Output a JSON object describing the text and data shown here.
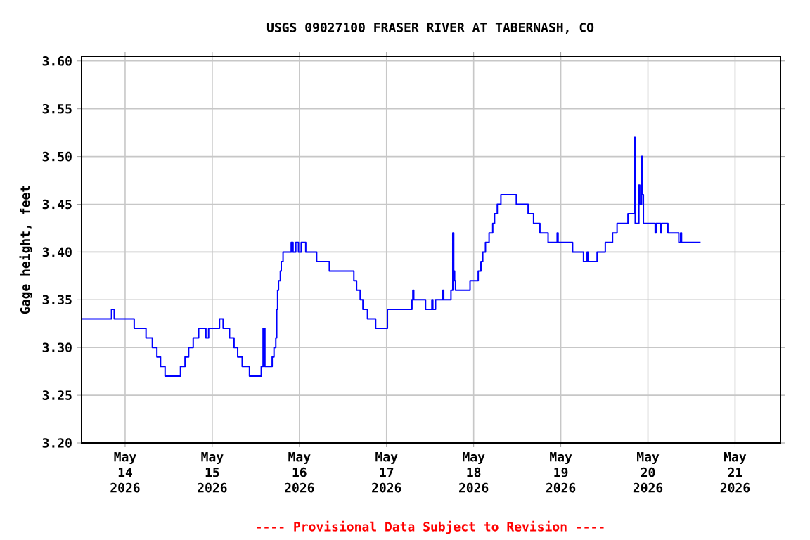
{
  "chart_data": {
    "type": "step",
    "title": "USGS 09027100 FRASER RIVER AT TABERNASH, CO",
    "ylabel": "Gage height, feet",
    "annotations": [
      "---- Provisional Data Subject to Revision ----"
    ],
    "x": [
      "2026-05-13T12:00",
      "2026-05-13T20:15",
      "2026-05-13T21:00",
      "2026-05-14T02:30",
      "2026-05-14T05:45",
      "2026-05-14T07:30",
      "2026-05-14T08:45",
      "2026-05-14T09:45",
      "2026-05-14T11:00",
      "2026-05-14T15:15",
      "2026-05-14T16:30",
      "2026-05-14T17:30",
      "2026-05-14T18:45",
      "2026-05-14T20:15",
      "2026-05-14T22:15",
      "2026-05-14T23:00",
      "2026-05-15T02:00",
      "2026-05-15T03:00",
      "2026-05-15T04:45",
      "2026-05-15T06:00",
      "2026-05-15T07:00",
      "2026-05-15T08:15",
      "2026-05-15T10:15",
      "2026-05-15T13:30",
      "2026-05-15T14:00",
      "2026-05-15T14:30",
      "2026-05-15T16:30",
      "2026-05-15T17:00",
      "2026-05-15T17:30",
      "2026-05-15T17:45",
      "2026-05-15T18:00",
      "2026-05-15T18:15",
      "2026-05-15T18:45",
      "2026-05-15T19:00",
      "2026-05-15T19:30",
      "2026-05-15T21:45",
      "2026-05-15T22:15",
      "2026-05-15T23:00",
      "2026-05-15T23:45",
      "2026-05-16T00:30",
      "2026-05-16T01:45",
      "2026-05-16T04:45",
      "2026-05-16T08:15",
      "2026-05-16T15:00",
      "2026-05-16T15:45",
      "2026-05-16T16:45",
      "2026-05-16T17:30",
      "2026-05-16T18:45",
      "2026-05-16T21:00",
      "2026-05-17T00:15",
      "2026-05-17T07:00",
      "2026-05-17T07:15",
      "2026-05-17T07:30",
      "2026-05-17T10:45",
      "2026-05-17T12:30",
      "2026-05-17T12:45",
      "2026-05-17T13:30",
      "2026-05-17T15:30",
      "2026-05-17T15:45",
      "2026-05-17T17:45",
      "2026-05-17T18:15",
      "2026-05-17T18:30",
      "2026-05-17T18:45",
      "2026-05-17T19:00",
      "2026-05-17T23:00",
      "2026-05-18T01:15",
      "2026-05-18T02:00",
      "2026-05-18T02:30",
      "2026-05-18T03:15",
      "2026-05-18T04:15",
      "2026-05-18T05:15",
      "2026-05-18T05:45",
      "2026-05-18T06:30",
      "2026-05-18T07:30",
      "2026-05-18T11:45",
      "2026-05-18T15:00",
      "2026-05-18T16:30",
      "2026-05-18T18:15",
      "2026-05-18T20:30",
      "2026-05-18T23:00",
      "2026-05-18T23:15",
      "2026-05-19T03:15",
      "2026-05-19T06:15",
      "2026-05-19T07:15",
      "2026-05-19T07:30",
      "2026-05-19T10:00",
      "2026-05-19T12:15",
      "2026-05-19T14:15",
      "2026-05-19T15:30",
      "2026-05-19T18:30",
      "2026-05-19T20:15",
      "2026-05-19T20:30",
      "2026-05-19T21:30",
      "2026-05-19T21:45",
      "2026-05-19T22:15",
      "2026-05-19T22:30",
      "2026-05-19T22:45",
      "2026-05-20T02:00",
      "2026-05-20T02:15",
      "2026-05-20T03:30",
      "2026-05-20T03:45",
      "2026-05-20T05:30",
      "2026-05-20T08:30",
      "2026-05-20T09:00",
      "2026-05-20T09:15",
      "2026-05-20T14:30"
    ],
    "series": [
      {
        "color": "#0000ff",
        "values": [
          3.33,
          3.34,
          3.33,
          3.32,
          3.31,
          3.3,
          3.29,
          3.28,
          3.27,
          3.28,
          3.29,
          3.3,
          3.31,
          3.32,
          3.31,
          3.32,
          3.33,
          3.32,
          3.31,
          3.3,
          3.29,
          3.28,
          3.27,
          3.28,
          3.32,
          3.28,
          3.29,
          3.3,
          3.31,
          3.34,
          3.36,
          3.37,
          3.38,
          3.39,
          3.4,
          3.41,
          3.4,
          3.41,
          3.4,
          3.41,
          3.4,
          3.39,
          3.38,
          3.37,
          3.36,
          3.35,
          3.34,
          3.33,
          3.32,
          3.34,
          3.35,
          3.36,
          3.35,
          3.34,
          3.35,
          3.34,
          3.35,
          3.36,
          3.35,
          3.36,
          3.42,
          3.38,
          3.37,
          3.36,
          3.37,
          3.38,
          3.39,
          3.4,
          3.41,
          3.42,
          3.43,
          3.44,
          3.45,
          3.46,
          3.45,
          3.44,
          3.43,
          3.42,
          3.41,
          3.42,
          3.41,
          3.4,
          3.39,
          3.4,
          3.39,
          3.4,
          3.41,
          3.42,
          3.43,
          3.44,
          3.52,
          3.43,
          3.47,
          3.45,
          3.5,
          3.46,
          3.43,
          3.42,
          3.43,
          3.42,
          3.43,
          3.42,
          3.41,
          3.42,
          3.41,
          3.41
        ]
      }
    ],
    "xlim": [
      "2026-05-13T12:00",
      "2026-05-21T12:30"
    ],
    "xticks": [
      {
        "value": "2026-05-14",
        "label": "May 14 2026"
      },
      {
        "value": "2026-05-15",
        "label": "May 15 2026"
      },
      {
        "value": "2026-05-16",
        "label": "May 16 2026"
      },
      {
        "value": "2026-05-17",
        "label": "May 17 2026"
      },
      {
        "value": "2026-05-18",
        "label": "May 18 2026"
      },
      {
        "value": "2026-05-19",
        "label": "May 19 2026"
      },
      {
        "value": "2026-05-20",
        "label": "May 20 2026"
      },
      {
        "value": "2026-05-21",
        "label": "May 21 2026"
      }
    ],
    "ylim": [
      3.2,
      3.605
    ],
    "yticks": [
      {
        "value": 3.2,
        "label": "3.20"
      },
      3.25,
      {
        "value": 3.3,
        "label": "3.30"
      },
      3.35,
      {
        "value": 3.4,
        "label": "3.40"
      },
      3.45,
      {
        "value": 3.5,
        "label": "3.50"
      },
      3.55,
      {
        "value": 3.6,
        "label": "3.60"
      }
    ],
    "grid": true,
    "marker": "none",
    "line_style": "solid"
  }
}
